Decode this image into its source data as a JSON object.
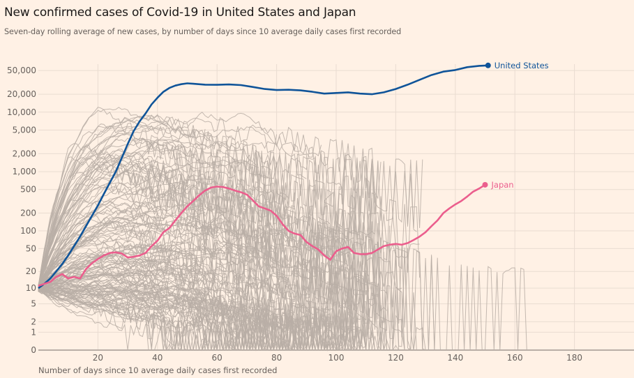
{
  "chart_data": {
    "type": "line",
    "title": "New confirmed cases of Covid-19 in United States and Japan",
    "subtitle": "Seven-day rolling average of new cases, by number of days since 10 average daily cases first recorded",
    "xlabel": "Number of days since 10 average daily cases first recorded",
    "ylabel": "",
    "xlim": [
      0,
      199
    ],
    "ylim": [
      0,
      60000
    ],
    "yscale": "log(1+y)",
    "grid": true,
    "x_ticks": [
      20,
      40,
      60,
      80,
      100,
      120,
      140,
      160,
      180
    ],
    "x_tick_labels": [
      "20",
      "40",
      "60",
      "80",
      "100",
      "120",
      "140",
      "160",
      "180"
    ],
    "y_ticks": [
      0,
      1,
      2,
      5,
      10,
      20,
      50,
      100,
      200,
      500,
      1000,
      2000,
      5000,
      10000,
      20000,
      50000
    ],
    "y_tick_labels": [
      "0",
      "1",
      "2",
      "5",
      "10",
      "20",
      "50",
      "100",
      "200",
      "500",
      "1,000",
      "2,000",
      "5,000",
      "10,000",
      "20,000",
      "50,000"
    ],
    "colors": {
      "background": "#fff1e5",
      "grid": "#e9dcd1",
      "axis": "#b8aea6",
      "other": "#b8aea6",
      "us": "#0f5499",
      "japan": "#eb5e8d"
    },
    "highlighted_series": [
      {
        "name": "United States",
        "color": "#0f5499",
        "x": [
          0,
          2,
          4,
          6,
          8,
          10,
          12,
          14,
          16,
          18,
          20,
          22,
          24,
          26,
          28,
          30,
          32,
          34,
          36,
          38,
          40,
          42,
          44,
          46,
          48,
          50,
          52,
          56,
          60,
          64,
          68,
          72,
          76,
          80,
          84,
          88,
          92,
          96,
          100,
          104,
          108,
          112,
          116,
          120,
          124,
          128,
          132,
          136,
          140,
          144,
          148,
          151
        ],
        "values": [
          10,
          12,
          15,
          20,
          27,
          38,
          55,
          80,
          120,
          180,
          270,
          420,
          650,
          1000,
          1700,
          2900,
          4800,
          7000,
          9500,
          13500,
          17500,
          22000,
          25500,
          28000,
          29500,
          30500,
          30000,
          29000,
          28800,
          29200,
          28500,
          26500,
          24500,
          23500,
          23800,
          23200,
          22000,
          20500,
          21000,
          21500,
          20500,
          20000,
          21500,
          24500,
          29000,
          35000,
          42000,
          48000,
          51000,
          57000,
          60000,
          61000
        ]
      },
      {
        "name": "Japan",
        "color": "#eb5e8d",
        "x": [
          0,
          2,
          4,
          6,
          8,
          10,
          12,
          14,
          16,
          18,
          20,
          22,
          24,
          26,
          28,
          30,
          32,
          34,
          36,
          38,
          40,
          42,
          44,
          46,
          48,
          50,
          52,
          54,
          56,
          58,
          60,
          62,
          64,
          66,
          68,
          70,
          72,
          74,
          76,
          78,
          80,
          82,
          84,
          86,
          88,
          90,
          92,
          94,
          96,
          98,
          100,
          102,
          104,
          106,
          108,
          110,
          112,
          114,
          116,
          118,
          120,
          122,
          124,
          126,
          128,
          130,
          132,
          134,
          136,
          138,
          140,
          142,
          144,
          146,
          148,
          150
        ],
        "values": [
          11,
          12,
          13,
          16,
          18,
          15,
          16,
          15,
          22,
          28,
          33,
          38,
          42,
          43,
          41,
          35,
          36,
          38,
          42,
          55,
          68,
          95,
          112,
          150,
          200,
          260,
          320,
          400,
          480,
          540,
          560,
          550,
          520,
          480,
          450,
          410,
          330,
          260,
          240,
          220,
          180,
          130,
          100,
          90,
          85,
          65,
          55,
          48,
          38,
          32,
          45,
          50,
          53,
          42,
          40,
          40,
          42,
          48,
          55,
          58,
          60,
          58,
          62,
          70,
          80,
          95,
          120,
          150,
          200,
          240,
          280,
          320,
          380,
          460,
          520,
          600
        ]
      }
    ],
    "other_series_count": 150,
    "annotations": [
      {
        "text": "United States",
        "series": "United States"
      },
      {
        "text": "Japan",
        "series": "Japan"
      }
    ]
  }
}
